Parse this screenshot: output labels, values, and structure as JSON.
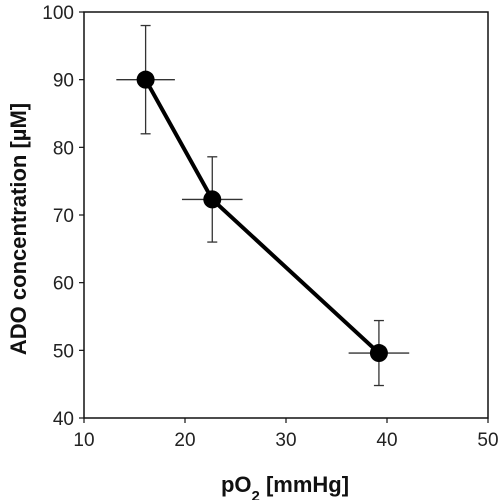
{
  "chart_data": {
    "type": "scatter",
    "title": "",
    "xlabel_prefix": "pO",
    "xlabel_sub": "2",
    "xlabel_suffix": " [mmHg]",
    "ylabel": "ADO concentration [µM]",
    "xlim": [
      10,
      50
    ],
    "ylim": [
      40,
      100
    ],
    "xticks": [
      10,
      20,
      30,
      40,
      50
    ],
    "yticks": [
      40,
      50,
      60,
      70,
      80,
      90,
      100
    ],
    "grid": false,
    "series": [
      {
        "points": [
          {
            "x": 16.1,
            "y": 90.0,
            "xerr": 2.9,
            "yerr": 8.0
          },
          {
            "x": 22.7,
            "y": 72.3,
            "xerr": 3.0,
            "yerr": 6.3
          },
          {
            "x": 39.2,
            "y": 49.6,
            "xerr": 3.0,
            "yerr": 4.8
          }
        ],
        "color": "#000000",
        "line": true
      }
    ]
  }
}
